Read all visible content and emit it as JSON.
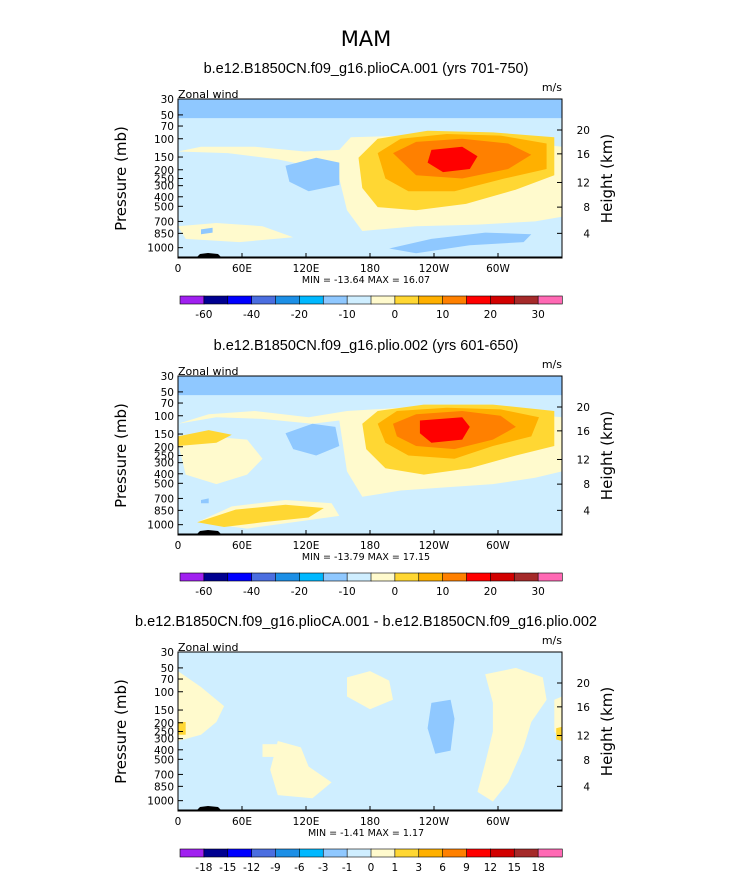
{
  "title": "MAM",
  "colors": {
    "cb1": [
      "#a020f0",
      "#000090",
      "#0000ff",
      "#4b6ee0",
      "#1c8fe6",
      "#00b8ff",
      "#8fc8ff",
      "#cfeeff",
      "#fffacd",
      "#ffd733",
      "#ffb000",
      "#ff8000",
      "#ff0000",
      "#d20000",
      "#a52a2a",
      "#ff69b4"
    ],
    "cb2": [
      "#a020f0",
      "#000090",
      "#0000ff",
      "#4b6ee0",
      "#1c8fe6",
      "#00b8ff",
      "#8fc8ff",
      "#cfeeff",
      "#fffacd",
      "#ffd733",
      "#ffb000",
      "#ff8000",
      "#ff0000",
      "#d20000",
      "#a52a2a",
      "#ff69b4"
    ]
  },
  "chart_data": [
    {
      "type": "heatmap",
      "title": "b.e12.B1850CN.f09_g16.plioCA.001 (yrs 701-750)",
      "left_label": "Zonal wind",
      "right_label": "m/s",
      "ylabel": "Pressure (mb)",
      "ylabel_right": "Height (km)",
      "x_ticks": [
        "0",
        "60E",
        "120E",
        "180",
        "120W",
        "60W"
      ],
      "y_ticks": [
        "30",
        "50",
        "70",
        "100",
        "150",
        "200",
        "250",
        "300",
        "400",
        "500",
        "700",
        "850",
        "1000"
      ],
      "height_ticks": [
        "20",
        "16",
        "12",
        "8",
        "4"
      ],
      "stats": "MIN = -13.64   MAX =  16.07",
      "colorbar_labels": [
        "-60",
        "-40",
        "-20",
        "-10",
        "0",
        "10",
        "20",
        "30"
      ],
      "min": -13.64,
      "max": 16.07
    },
    {
      "type": "heatmap",
      "title": "b.e12.B1850CN.f09_g16.plio.002 (yrs 601-650)",
      "left_label": "Zonal wind",
      "right_label": "m/s",
      "ylabel": "Pressure (mb)",
      "ylabel_right": "Height (km)",
      "x_ticks": [
        "0",
        "60E",
        "120E",
        "180",
        "120W",
        "60W"
      ],
      "y_ticks": [
        "30",
        "50",
        "70",
        "100",
        "150",
        "200",
        "250",
        "300",
        "400",
        "500",
        "700",
        "850",
        "1000"
      ],
      "height_ticks": [
        "20",
        "16",
        "12",
        "8",
        "4"
      ],
      "stats": "MIN = -13.79   MAX =  17.15",
      "colorbar_labels": [
        "-60",
        "-40",
        "-20",
        "-10",
        "0",
        "10",
        "20",
        "30"
      ],
      "min": -13.79,
      "max": 17.15
    },
    {
      "type": "heatmap",
      "title": "b.e12.B1850CN.f09_g16.plioCA.001 - b.e12.B1850CN.f09_g16.plio.002",
      "left_label": "Zonal wind",
      "right_label": "m/s",
      "ylabel": "Pressure (mb)",
      "ylabel_right": "Height (km)",
      "x_ticks": [
        "0",
        "60E",
        "120E",
        "180",
        "120W",
        "60W"
      ],
      "y_ticks": [
        "30",
        "50",
        "70",
        "100",
        "150",
        "200",
        "250",
        "300",
        "400",
        "500",
        "700",
        "850",
        "1000"
      ],
      "height_ticks": [
        "20",
        "16",
        "12",
        "8",
        "4"
      ],
      "stats": "MIN =  -1.41   MAX =   1.17",
      "colorbar_labels": [
        "-18",
        "-15",
        "-12",
        "-9",
        "-6",
        "-3",
        "-1",
        "0",
        "1",
        "3",
        "6",
        "9",
        "12",
        "15",
        "18"
      ],
      "min": -1.41,
      "max": 1.17
    }
  ]
}
